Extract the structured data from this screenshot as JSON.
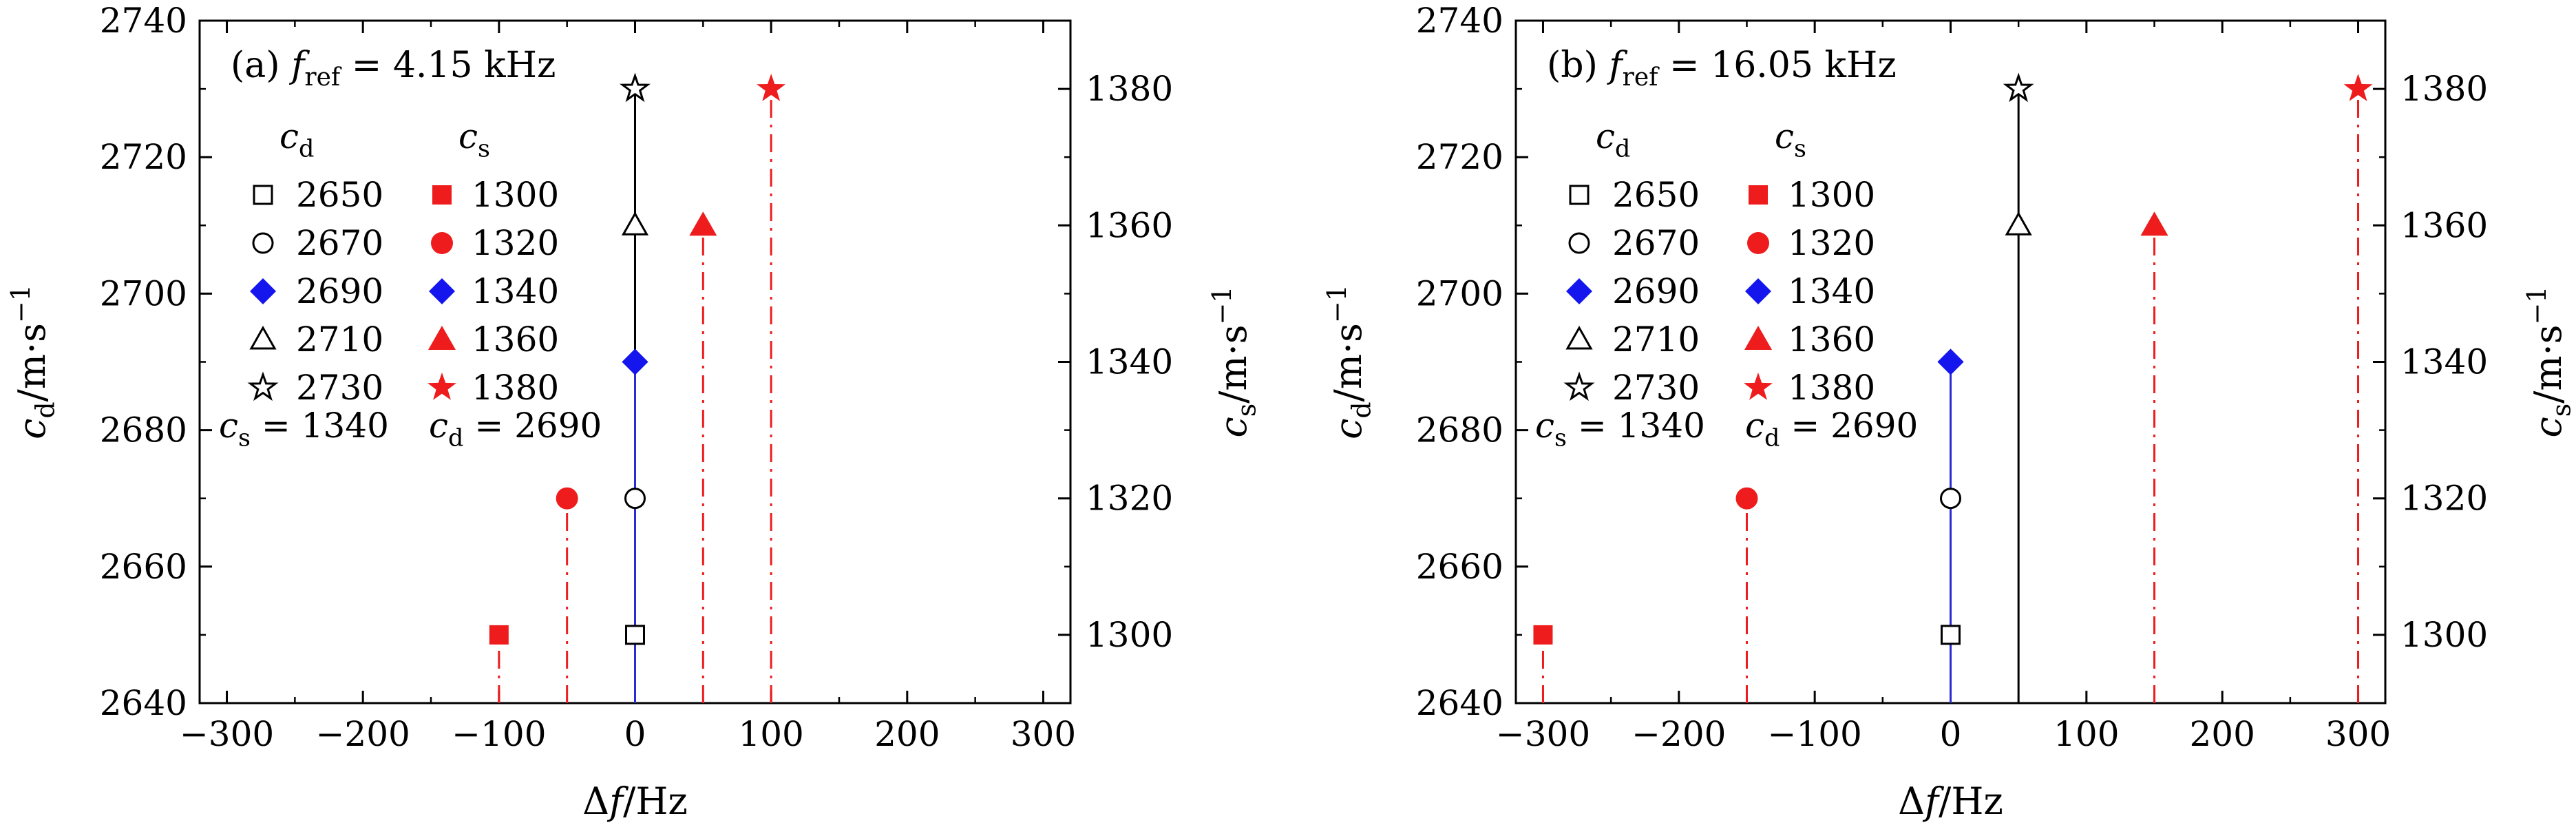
{
  "chart_data": [
    {
      "type": "scatter",
      "panel_label": "(a)",
      "f_ref_text": "4.15 kHz",
      "x_label": "Δf/Hz",
      "y_left_label": "c_d/m·s⁻¹",
      "y_right_label": "c_s/m·s⁻¹",
      "x_ticks": [
        -300,
        -200,
        -100,
        0,
        100,
        200,
        300
      ],
      "x_tick_labels": [
        "−300",
        "−200",
        "−100",
        "0",
        "100",
        "200",
        "300"
      ],
      "y_left_ticks": [
        2640,
        2660,
        2680,
        2700,
        2720,
        2740
      ],
      "y_right_ticks": [
        1300,
        1320,
        1340,
        1360,
        1380
      ],
      "xlim": [
        -320,
        320
      ],
      "y_left_lim": [
        2640,
        2740
      ],
      "y_right_lim": [
        1290,
        1390
      ],
      "legend": {
        "header_cd": "c_d",
        "header_cs": "c_s",
        "cd_values": [
          "2650",
          "2670",
          "2690",
          "2710",
          "2730"
        ],
        "cs_values": [
          "1300",
          "1320",
          "1340",
          "1360",
          "1380"
        ],
        "note_cd_series": "c_s = 1340",
        "note_cs_series": "c_d = 2690"
      },
      "series": [
        {
          "name": "c_d (c_s = 1340)",
          "axis": "left",
          "color": "#000000",
          "points": [
            {
              "x": 0,
              "y": 2650,
              "marker": "square-open"
            },
            {
              "x": 0,
              "y": 2670,
              "marker": "circle-open"
            },
            {
              "x": 0,
              "y": 2690,
              "marker": "diamond-filled-blue"
            },
            {
              "x": 0,
              "y": 2710,
              "marker": "triangle-open"
            },
            {
              "x": 0,
              "y": 2730,
              "marker": "star-open"
            }
          ]
        },
        {
          "name": "c_s (c_d = 2690)",
          "axis": "right",
          "color": "#ee1c1c",
          "points": [
            {
              "x": -100,
              "y": 1300,
              "marker": "square-filled"
            },
            {
              "x": -50,
              "y": 1320,
              "marker": "circle-filled"
            },
            {
              "x": 0,
              "y": 1340,
              "marker": "diamond-filled-blue"
            },
            {
              "x": 50,
              "y": 1360,
              "marker": "triangle-filled"
            },
            {
              "x": 100,
              "y": 1380,
              "marker": "star-filled"
            }
          ]
        }
      ]
    },
    {
      "type": "scatter",
      "panel_label": "(b)",
      "f_ref_text": "16.05 kHz",
      "x_label": "Δf/Hz",
      "y_left_label": "c_d/m·s⁻¹",
      "y_right_label": "c_s/m·s⁻¹",
      "x_ticks": [
        -300,
        -200,
        -100,
        0,
        100,
        200,
        300
      ],
      "x_tick_labels": [
        "−300",
        "−200",
        "−100",
        "0",
        "100",
        "200",
        "300"
      ],
      "y_left_ticks": [
        2640,
        2660,
        2680,
        2700,
        2720,
        2740
      ],
      "y_right_ticks": [
        1300,
        1320,
        1340,
        1360,
        1380
      ],
      "xlim": [
        -320,
        320
      ],
      "y_left_lim": [
        2640,
        2740
      ],
      "y_right_lim": [
        1290,
        1390
      ],
      "legend": {
        "header_cd": "c_d",
        "header_cs": "c_s",
        "cd_values": [
          "2650",
          "2670",
          "2690",
          "2710",
          "2730"
        ],
        "cs_values": [
          "1300",
          "1320",
          "1340",
          "1360",
          "1380"
        ],
        "note_cd_series": "c_s = 1340",
        "note_cs_series": "c_d = 2690"
      },
      "series": [
        {
          "name": "c_d (c_s = 1340)",
          "axis": "left",
          "color": "#000000",
          "points": [
            {
              "x": 0,
              "y": 2650,
              "marker": "square-open"
            },
            {
              "x": 0,
              "y": 2670,
              "marker": "circle-open"
            },
            {
              "x": 0,
              "y": 2690,
              "marker": "diamond-filled-blue"
            },
            {
              "x": 50,
              "y": 2710,
              "marker": "triangle-open"
            },
            {
              "x": 50,
              "y": 2730,
              "marker": "star-open"
            }
          ]
        },
        {
          "name": "c_s (c_d = 2690)",
          "axis": "right",
          "color": "#ee1c1c",
          "points": [
            {
              "x": -300,
              "y": 1300,
              "marker": "square-filled"
            },
            {
              "x": -150,
              "y": 1320,
              "marker": "circle-filled"
            },
            {
              "x": 0,
              "y": 1340,
              "marker": "diamond-filled-blue"
            },
            {
              "x": 150,
              "y": 1360,
              "marker": "triangle-filled"
            },
            {
              "x": 300,
              "y": 1380,
              "marker": "star-filled"
            }
          ]
        }
      ]
    }
  ],
  "colors": {
    "axis": "#000000",
    "red": "#ee1c1c",
    "blue": "#1515ee",
    "blue_line": "#2b2bd6"
  }
}
